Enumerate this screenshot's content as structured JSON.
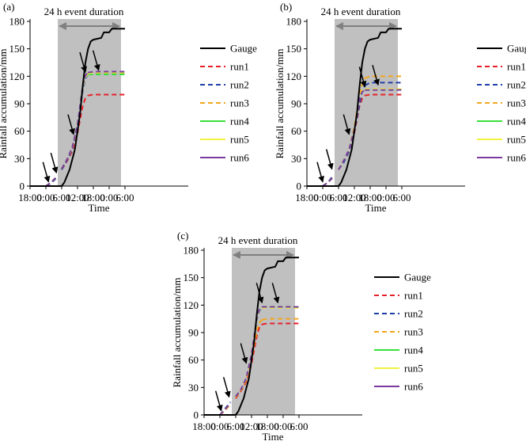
{
  "colors": {
    "shade": "#c0c0c0",
    "arrow": "#808080",
    "Gauge": "#000000",
    "run1": "#e8202a",
    "run2": "#1f3fa8",
    "run3": "#f2a61e",
    "run4": "#38e038",
    "run5": "#f2f240",
    "run6": "#7a3aa0"
  },
  "chart_data": [
    {
      "type": "line",
      "panel_label": "(a)",
      "event_label": "24 h event duration",
      "ylabel": "Rainfall accumulation/mm",
      "xlabel": "Time",
      "x_unit": "hours after 18:00 on day 1",
      "xlim": [
        0,
        60
      ],
      "ylim": [
        0,
        180
      ],
      "yticks": [
        "0",
        "30",
        "60",
        "90",
        "120",
        "150",
        "180"
      ],
      "xticks": [
        {
          "x": 0,
          "label": "18:00"
        },
        {
          "x": 6,
          "label": "0:00"
        },
        {
          "x": 12,
          "label": "6:00"
        },
        {
          "x": 18,
          "label": "12:00"
        },
        {
          "x": 24,
          "label": "18:00"
        },
        {
          "x": 30,
          "label": "0:00"
        },
        {
          "x": 36,
          "label": "6:00"
        }
      ],
      "event_window": [
        10.5,
        34.5
      ],
      "legend": [
        "Gauge",
        "run1",
        "run2",
        "run3",
        "run4",
        "run5",
        "run6"
      ],
      "series": [
        {
          "name": "Gauge",
          "style": "solid",
          "x": [
            0,
            12,
            13,
            15,
            17,
            19,
            20,
            21,
            22,
            23,
            24,
            27,
            28,
            30,
            31,
            32,
            33,
            34,
            35,
            36
          ],
          "y": [
            0,
            0,
            4,
            18,
            40,
            80,
            110,
            135,
            150,
            158,
            160,
            162,
            168,
            168,
            172,
            172,
            172,
            172,
            172,
            172
          ]
        },
        {
          "name": "run1",
          "style": "partial-solid",
          "x": [
            0,
            6,
            8,
            10,
            12,
            14,
            16,
            18,
            20,
            21,
            22,
            24,
            30,
            36
          ],
          "y": [
            0,
            0,
            4,
            10,
            18,
            27,
            38,
            58,
            88,
            96,
            99,
            100,
            100,
            100
          ]
        },
        {
          "name": "run2",
          "style": "partial-solid",
          "x": [
            0,
            6,
            8,
            10,
            12,
            14,
            16,
            18,
            20,
            21,
            22,
            24,
            30,
            36
          ],
          "y": [
            0,
            0,
            3,
            9,
            18,
            28,
            40,
            65,
            105,
            118,
            122,
            123,
            123,
            123
          ]
        },
        {
          "name": "run3",
          "style": "partial-solid",
          "x": [
            0,
            6,
            8,
            10,
            12,
            14,
            16,
            18,
            20,
            21,
            22,
            24,
            30,
            36
          ],
          "y": [
            0,
            0,
            4,
            10,
            19,
            29,
            41,
            66,
            108,
            120,
            124,
            124,
            124,
            124
          ]
        },
        {
          "name": "run4",
          "style": "partial-solid",
          "x": [
            0,
            6,
            8,
            10,
            12,
            14,
            16,
            18,
            20,
            21,
            22,
            24,
            30,
            36
          ],
          "y": [
            0,
            0,
            4,
            10,
            19,
            29,
            42,
            67,
            110,
            120,
            122,
            122,
            122,
            122
          ]
        },
        {
          "name": "run5",
          "style": "partial-solid",
          "x": [
            0,
            6,
            8,
            10,
            12,
            14,
            16,
            18,
            20,
            21,
            22,
            24,
            30,
            36
          ],
          "y": [
            0,
            0,
            4,
            10,
            19,
            29,
            41,
            66,
            108,
            119,
            123,
            124,
            124,
            124
          ]
        },
        {
          "name": "run6",
          "style": "partial-solid",
          "x": [
            0,
            6,
            8,
            10,
            12,
            14,
            16,
            18,
            20,
            21,
            22,
            24,
            30,
            36
          ],
          "y": [
            0,
            0,
            4,
            10,
            19,
            29,
            42,
            67,
            110,
            121,
            124,
            125,
            125,
            125
          ]
        }
      ],
      "annotations": [
        {
          "type": "arrow",
          "x": 7,
          "y": 2
        },
        {
          "type": "arrow",
          "x": 10,
          "y": 12
        },
        {
          "type": "arrow",
          "x": 16.5,
          "y": 54
        },
        {
          "type": "arrow",
          "x": 21,
          "y": 122
        },
        {
          "type": "arrow",
          "x": 26,
          "y": 124
        }
      ]
    },
    {
      "type": "line",
      "panel_label": "(b)",
      "event_label": "24 h event duration",
      "ylabel": "Rainfall accumulation/mm",
      "xlabel": "Time",
      "x_unit": "hours after 18:00 on day 1",
      "xlim": [
        0,
        60
      ],
      "ylim": [
        0,
        180
      ],
      "yticks": [
        "0",
        "30",
        "60",
        "90",
        "120",
        "150",
        "180"
      ],
      "xticks": [
        {
          "x": 0,
          "label": "18:00"
        },
        {
          "x": 6,
          "label": "0:00"
        },
        {
          "x": 12,
          "label": "6:00"
        },
        {
          "x": 18,
          "label": "12:00"
        },
        {
          "x": 24,
          "label": "18:00"
        },
        {
          "x": 30,
          "label": "0:00"
        },
        {
          "x": 36,
          "label": "6:00"
        }
      ],
      "event_window": [
        10.5,
        34.5
      ],
      "legend": [
        "Gauge",
        "run1",
        "run2",
        "run3",
        "run4",
        "run5",
        "run6"
      ],
      "series": [
        {
          "name": "Gauge",
          "style": "solid",
          "x": [
            0,
            12,
            13,
            15,
            17,
            19,
            20,
            21,
            22,
            23,
            24,
            27,
            28,
            30,
            31,
            32,
            33,
            34,
            35,
            36
          ],
          "y": [
            0,
            0,
            4,
            18,
            40,
            80,
            110,
            135,
            150,
            158,
            160,
            162,
            168,
            168,
            172,
            172,
            172,
            172,
            172,
            172
          ]
        },
        {
          "name": "run1",
          "style": "partial-solid",
          "x": [
            0,
            6,
            8,
            10,
            12,
            14,
            16,
            18,
            20,
            21,
            22,
            24,
            30,
            36
          ],
          "y": [
            0,
            0,
            4,
            10,
            18,
            27,
            38,
            58,
            88,
            96,
            99,
            100,
            100,
            100
          ]
        },
        {
          "name": "run2",
          "style": "partial-solid",
          "x": [
            0,
            6,
            8,
            10,
            12,
            14,
            16,
            18,
            20,
            21,
            22,
            24,
            30,
            36
          ],
          "y": [
            0,
            0,
            4,
            12,
            18,
            26,
            38,
            60,
            90,
            104,
            110,
            113,
            113,
            113
          ]
        },
        {
          "name": "run3",
          "style": "partial-solid",
          "x": [
            0,
            6,
            8,
            10,
            12,
            14,
            16,
            18,
            20,
            21,
            22,
            24,
            30,
            36
          ],
          "y": [
            0,
            0,
            4,
            10,
            18,
            28,
            40,
            65,
            100,
            112,
            118,
            120,
            120,
            120
          ]
        },
        {
          "name": "run4",
          "style": "partial-solid",
          "x": [
            0,
            6,
            8,
            10,
            12,
            14,
            16,
            18,
            20,
            21,
            22,
            24,
            30,
            36
          ],
          "y": [
            0,
            0,
            4,
            10,
            18,
            28,
            40,
            62,
            96,
            104,
            106,
            106,
            106,
            106
          ]
        },
        {
          "name": "run5",
          "style": "partial-solid",
          "x": [
            0,
            6,
            8,
            10,
            12,
            14,
            16,
            18,
            20,
            21,
            22,
            24,
            30,
            36
          ],
          "y": [
            0,
            0,
            4,
            10,
            18,
            28,
            40,
            62,
            96,
            104,
            106,
            106,
            106,
            106
          ]
        },
        {
          "name": "run6",
          "style": "partial-solid",
          "x": [
            0,
            6,
            8,
            10,
            12,
            14,
            16,
            18,
            20,
            21,
            22,
            24,
            30,
            36
          ],
          "y": [
            0,
            0,
            4,
            10,
            18,
            28,
            40,
            62,
            96,
            103,
            105,
            105,
            105,
            105
          ]
        }
      ],
      "annotations": [
        {
          "type": "arrow",
          "x": 6,
          "y": 2
        },
        {
          "type": "arrow",
          "x": 9.5,
          "y": 16
        },
        {
          "type": "arrow",
          "x": 16,
          "y": 54
        },
        {
          "type": "arrow",
          "x": 22,
          "y": 106
        },
        {
          "type": "arrow",
          "x": 27,
          "y": 108
        }
      ]
    },
    {
      "type": "line",
      "panel_label": "(c)",
      "event_label": "24 h event duration",
      "ylabel": "Rainfall accumulation/mm",
      "xlabel": "Time",
      "x_unit": "hours after 18:00 on day 1",
      "xlim": [
        0,
        60
      ],
      "ylim": [
        0,
        180
      ],
      "yticks": [
        "0",
        "30",
        "60",
        "90",
        "120",
        "150",
        "180"
      ],
      "xticks": [
        {
          "x": 0,
          "label": "18:00"
        },
        {
          "x": 6,
          "label": "0:00"
        },
        {
          "x": 12,
          "label": "6:00"
        },
        {
          "x": 18,
          "label": "12:00"
        },
        {
          "x": 24,
          "label": "18:00"
        },
        {
          "x": 30,
          "label": "0:00"
        },
        {
          "x": 36,
          "label": "6:00"
        }
      ],
      "event_window": [
        10.5,
        34.5
      ],
      "legend": [
        "Gauge",
        "run1",
        "run2",
        "run3",
        "run4",
        "run5",
        "run6"
      ],
      "series": [
        {
          "name": "Gauge",
          "style": "solid",
          "x": [
            0,
            12,
            13,
            15,
            17,
            19,
            20,
            21,
            22,
            23,
            24,
            27,
            28,
            30,
            31,
            32,
            33,
            34,
            35,
            36
          ],
          "y": [
            0,
            0,
            4,
            18,
            40,
            80,
            110,
            135,
            150,
            158,
            160,
            162,
            168,
            168,
            172,
            172,
            172,
            172,
            172,
            172
          ]
        },
        {
          "name": "run1",
          "style": "partial-solid",
          "x": [
            0,
            6,
            8,
            10,
            12,
            14,
            16,
            18,
            20,
            21,
            22,
            24,
            30,
            36
          ],
          "y": [
            0,
            0,
            5,
            12,
            18,
            26,
            36,
            56,
            86,
            96,
            99,
            100,
            100,
            100
          ]
        },
        {
          "name": "run2",
          "style": "partial-solid",
          "x": [
            0,
            6,
            8,
            10,
            12,
            14,
            16,
            18,
            20,
            21,
            22,
            24,
            30,
            36
          ],
          "y": [
            0,
            0,
            7,
            14,
            20,
            28,
            40,
            66,
            104,
            114,
            117,
            118,
            118,
            118
          ]
        },
        {
          "name": "run3",
          "style": "partial-solid",
          "x": [
            0,
            6,
            8,
            10,
            12,
            14,
            16,
            18,
            20,
            21,
            22,
            24,
            30,
            36
          ],
          "y": [
            0,
            0,
            5,
            12,
            19,
            27,
            38,
            60,
            92,
            101,
            104,
            105,
            105,
            105
          ]
        },
        {
          "name": "run4",
          "style": "partial-solid",
          "x": [
            0,
            6,
            8,
            10,
            12,
            14,
            16,
            18,
            20,
            21,
            22,
            24,
            30,
            36
          ],
          "y": [
            0,
            0,
            6,
            13,
            20,
            28,
            40,
            66,
            106,
            116,
            118,
            118,
            118,
            118
          ]
        },
        {
          "name": "run5",
          "style": "partial-solid",
          "x": [
            0,
            6,
            8,
            10,
            12,
            14,
            16,
            18,
            20,
            21,
            22,
            24,
            30,
            36
          ],
          "y": [
            0,
            0,
            6,
            13,
            20,
            28,
            40,
            66,
            105,
            115,
            117,
            117,
            117,
            117
          ]
        },
        {
          "name": "run6",
          "style": "partial-solid",
          "x": [
            0,
            6,
            8,
            10,
            12,
            14,
            16,
            18,
            20,
            21,
            22,
            24,
            30,
            36
          ],
          "y": [
            0,
            0,
            6,
            13,
            20,
            28,
            40,
            66,
            106,
            116,
            118,
            118,
            118,
            118
          ]
        }
      ],
      "annotations": [
        {
          "type": "arrow",
          "x": 6.5,
          "y": 2
        },
        {
          "type": "arrow",
          "x": 9.5,
          "y": 17
        },
        {
          "type": "arrow",
          "x": 16,
          "y": 54
        },
        {
          "type": "arrow",
          "x": 22,
          "y": 120
        },
        {
          "type": "arrow",
          "x": 28,
          "y": 120
        }
      ]
    }
  ]
}
